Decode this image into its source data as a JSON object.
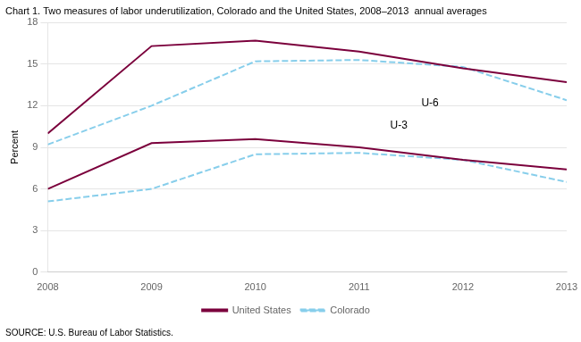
{
  "chart_data": {
    "type": "line",
    "title": "Chart 1. Two measures of labor underutilization, Colorado and the United States, 2008–2013  annual averages",
    "y_label": "Percent",
    "source": "SOURCE: U.S. Bureau of Labor Statistics.",
    "x": [
      2008,
      2009,
      2010,
      2011,
      2012,
      2013
    ],
    "series": [
      {
        "name": "United States",
        "color": "#7B003C",
        "line_style": "solid",
        "values": [
          10.0,
          16.3,
          16.7,
          15.9,
          14.7,
          13.7
        ]
      },
      {
        "name": "Colorado",
        "color": "#87CEEB",
        "line_style": "dashed",
        "values": [
          9.2,
          12.0,
          15.2,
          15.3,
          14.8,
          12.4
        ]
      },
      {
        "name": "United States",
        "color": "#7B003C",
        "line_style": "solid",
        "values": [
          6.0,
          9.3,
          9.6,
          9.0,
          8.1,
          7.4
        ]
      },
      {
        "name": "Colorado",
        "color": "#87CEEB",
        "line_style": "dashed",
        "values": [
          5.1,
          6.0,
          8.5,
          8.6,
          8.1,
          6.5
        ]
      }
    ],
    "annotations": [
      {
        "text": "U-6",
        "x": 2011.6,
        "y": 12.2
      },
      {
        "text": "U-3",
        "x": 2011.3,
        "y": 10.55
      }
    ],
    "xlim": [
      2008,
      2013
    ],
    "xticks": [
      2008,
      2009,
      2010,
      2011,
      2012,
      2013
    ],
    "ylim": [
      0,
      18
    ],
    "yticks": [
      0,
      3,
      6,
      9,
      12,
      15,
      18
    ],
    "grid": "y",
    "legend": "bottom"
  }
}
